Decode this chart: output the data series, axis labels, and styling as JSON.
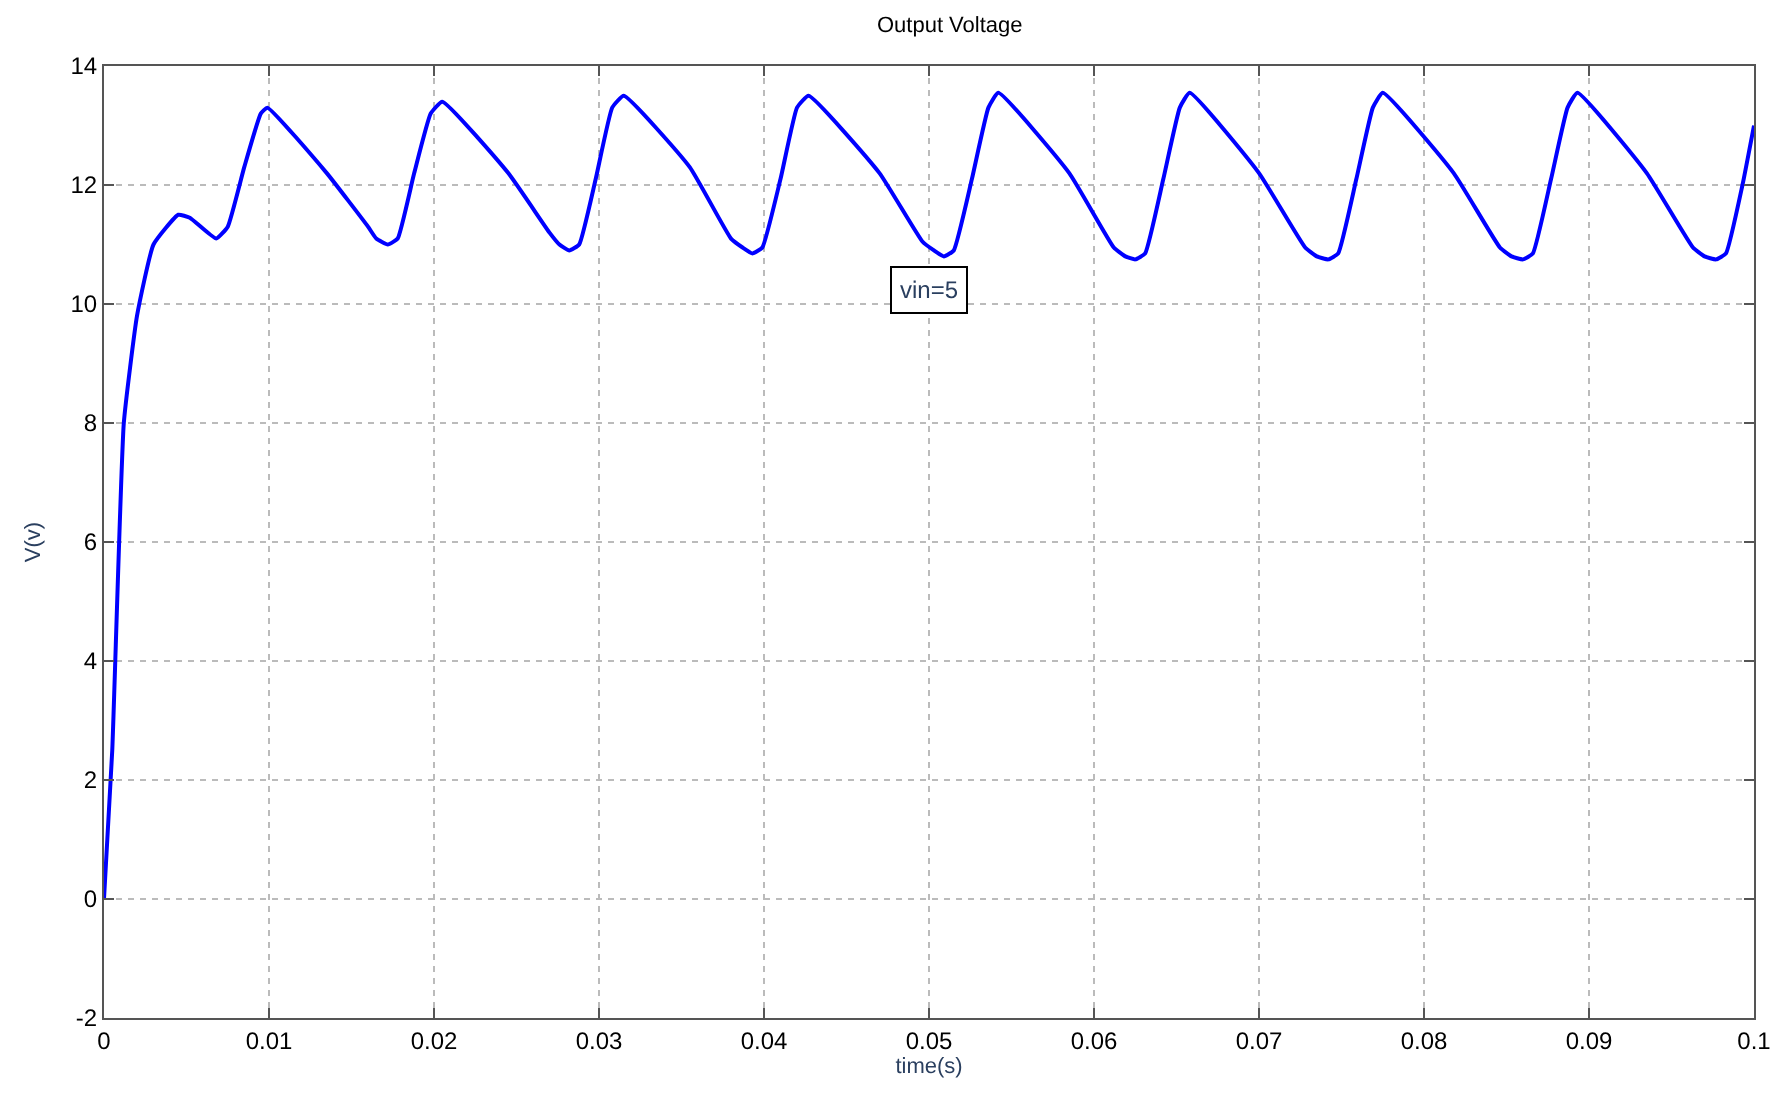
{
  "chart_data": {
    "type": "line",
    "title": "Output Voltage",
    "xlabel": "time(s)",
    "ylabel": "V(v)",
    "annotations": [
      "vin=5"
    ],
    "x": [
      0,
      0.0005,
      0.0012,
      0.002,
      0.003,
      0.0045,
      0.0052,
      0.0068,
      0.0075,
      0.0085,
      0.0095,
      0.0099,
      0.0135,
      0.016,
      0.0165,
      0.0172,
      0.0178,
      0.0188,
      0.0198,
      0.0205,
      0.0245,
      0.027,
      0.0276,
      0.0282,
      0.0288,
      0.0298,
      0.0308,
      0.0315,
      0.0355,
      0.038,
      0.0387,
      0.0393,
      0.0399,
      0.041,
      0.042,
      0.0427,
      0.047,
      0.0496,
      0.0503,
      0.0509,
      0.0515,
      0.0526,
      0.0536,
      0.0542,
      0.0585,
      0.0612,
      0.0619,
      0.0625,
      0.0631,
      0.0642,
      0.0652,
      0.0658,
      0.07,
      0.0728,
      0.0735,
      0.0742,
      0.0748,
      0.0759,
      0.0769,
      0.0775,
      0.0818,
      0.0846,
      0.0853,
      0.086,
      0.0866,
      0.0877,
      0.0887,
      0.0893,
      0.0935,
      0.0963,
      0.097,
      0.0977,
      0.0983,
      0.0993,
      0.1
    ],
    "series": [
      {
        "color": "#0000ff",
        "values": [
          0,
          2.5,
          8,
          9.8,
          11,
          11.5,
          11.45,
          11.1,
          11.3,
          12.3,
          13.2,
          13.3,
          12.2,
          11.3,
          11.1,
          11.0,
          11.1,
          12.2,
          13.2,
          13.4,
          12.2,
          11.2,
          11.0,
          10.9,
          11.0,
          12.1,
          13.3,
          13.5,
          12.3,
          11.1,
          10.95,
          10.85,
          10.95,
          12.1,
          13.3,
          13.5,
          12.2,
          11.05,
          10.9,
          10.8,
          10.9,
          12.1,
          13.3,
          13.55,
          12.2,
          10.95,
          10.8,
          10.75,
          10.85,
          12.1,
          13.3,
          13.55,
          12.2,
          10.95,
          10.8,
          10.75,
          10.85,
          12.1,
          13.3,
          13.55,
          12.2,
          10.95,
          10.8,
          10.75,
          10.85,
          12.1,
          13.3,
          13.55,
          12.2,
          10.95,
          10.8,
          10.75,
          10.85,
          12.0,
          13.0
        ]
      }
    ],
    "xlim": [
      0,
      0.1
    ],
    "ylim": [
      -2,
      14
    ],
    "xticks": [
      0,
      0.01,
      0.02,
      0.03,
      0.04,
      0.05,
      0.06,
      0.07,
      0.08,
      0.09,
      0.1
    ],
    "yticks": [
      -2,
      0,
      2,
      4,
      6,
      8,
      10,
      12,
      14
    ],
    "grid": true,
    "line_style": "solid",
    "marker": "none"
  }
}
